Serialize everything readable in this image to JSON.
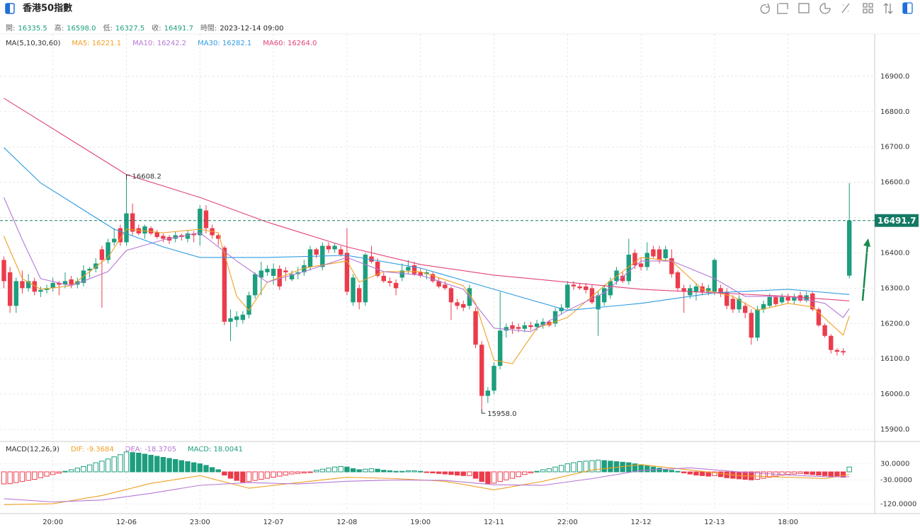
{
  "header": {
    "title": "香港50指數",
    "labels": [
      "開:",
      "高:",
      "低:",
      "收:",
      "時間:"
    ],
    "values": [
      "16335.5",
      "16598.0",
      "16327.5",
      "16491.7",
      "2023-12-14 09:00"
    ]
  },
  "chart_data": {
    "type": "candlestick",
    "up_color": "#1d9e7e",
    "down_color": "#eb3c4c",
    "xlim": [
      -0.636,
      142.14
    ],
    "xticks": [
      {
        "value": 8,
        "label": "20:00"
      },
      {
        "value": 20,
        "label": "12-06"
      },
      {
        "value": 32,
        "label": "23:00"
      },
      {
        "value": 44,
        "label": "12-07"
      },
      {
        "value": 56,
        "label": "12-08"
      },
      {
        "value": 68,
        "label": "19:00"
      },
      {
        "value": 80,
        "label": "12-11"
      },
      {
        "value": 92,
        "label": "22:00"
      },
      {
        "value": 104,
        "label": "12-12"
      },
      {
        "value": 116,
        "label": "12-13"
      },
      {
        "value": 128,
        "label": "18:00"
      }
    ],
    "ylim": [
      15870,
      17020
    ],
    "yticks": [
      {
        "value": 15900,
        "label": "15900.0"
      },
      {
        "value": 16000,
        "label": "16000.0"
      },
      {
        "value": 16100,
        "label": "16100.0"
      },
      {
        "value": 16200,
        "label": "16200.0"
      },
      {
        "value": 16300,
        "label": "16300.0"
      },
      {
        "value": 16400,
        "label": "16400.0"
      },
      {
        "value": 16500,
        "label": "16500.0"
      },
      {
        "value": 16600,
        "label": "16600.0"
      },
      {
        "value": 16700,
        "label": "16700.0"
      },
      {
        "value": 16800,
        "label": "16800.0"
      },
      {
        "value": 16900,
        "label": "16900.0"
      }
    ],
    "grid": true,
    "max_label": "16608.2",
    "min_label": "15958.0",
    "ohlc": [
      [
        16380,
        16390,
        16300,
        16320
      ],
      [
        16345,
        16360,
        16230,
        16250
      ],
      [
        16250,
        16330,
        16230,
        16320
      ],
      [
        16320,
        16350,
        16285,
        16300
      ],
      [
        16300,
        16340,
        16290,
        16320
      ],
      [
        16320,
        16330,
        16280,
        16290
      ],
      [
        16290,
        16305,
        16275,
        16295
      ],
      [
        16295,
        16310,
        16285,
        16300
      ],
      [
        16300,
        16330,
        16290,
        16315
      ],
      [
        16315,
        16320,
        16280,
        16310
      ],
      [
        16310,
        16345,
        16300,
        16320
      ],
      [
        16325,
        16335,
        16300,
        16310
      ],
      [
        16310,
        16330,
        16300,
        16320
      ],
      [
        16315,
        16365,
        16305,
        16350
      ],
      [
        16350,
        16360,
        16330,
        16355
      ],
      [
        16355,
        16385,
        16345,
        16370
      ],
      [
        16410,
        16420,
        16245,
        16380
      ],
      [
        16380,
        16440,
        16370,
        16430
      ],
      [
        16430,
        16470,
        16420,
        16440
      ],
      [
        16470,
        16480,
        16420,
        16430
      ],
      [
        16430,
        16608.2,
        16420,
        16512
      ],
      [
        16512,
        16540,
        16450,
        16460
      ],
      [
        16470,
        16480,
        16450,
        16455
      ],
      [
        16455,
        16480,
        16440,
        16475
      ],
      [
        16470,
        16475,
        16450,
        16455
      ],
      [
        16458,
        16465,
        16440,
        16445
      ],
      [
        16448,
        16455,
        16430,
        16440
      ],
      [
        16445,
        16450,
        16425,
        16435
      ],
      [
        16440,
        16460,
        16430,
        16450
      ],
      [
        16450,
        16455,
        16435,
        16445
      ],
      [
        16440,
        16465,
        16430,
        16455
      ],
      [
        16455,
        16462,
        16430,
        16450
      ],
      [
        16450,
        16535,
        16420,
        16525
      ],
      [
        16520,
        16535,
        16455,
        16470
      ],
      [
        16470,
        16480,
        16440,
        16450
      ],
      [
        16450,
        16455,
        16420,
        16440
      ],
      [
        16415,
        16420,
        16195,
        16205
      ],
      [
        16205,
        16240,
        16150,
        16215
      ],
      [
        16210,
        16235,
        16190,
        16220
      ],
      [
        16210,
        16235,
        16200,
        16225
      ],
      [
        16225,
        16290,
        16215,
        16280
      ],
      [
        16280,
        16345,
        16270,
        16340
      ],
      [
        16330,
        16375,
        16280,
        16350
      ],
      [
        16345,
        16365,
        16335,
        16355
      ],
      [
        16335,
        16370,
        16310,
        16355
      ],
      [
        16355,
        16365,
        16295,
        16305
      ],
      [
        16350,
        16360,
        16320,
        16345
      ],
      [
        16325,
        16350,
        16320,
        16340
      ],
      [
        16340,
        16360,
        16325,
        16345
      ],
      [
        16345,
        16380,
        16335,
        16365
      ],
      [
        16360,
        16420,
        16350,
        16410
      ],
      [
        16410,
        16415,
        16385,
        16395
      ],
      [
        16360,
        16430,
        16350,
        16420
      ],
      [
        16420,
        16430,
        16400,
        16410
      ],
      [
        16410,
        16428,
        16400,
        16420
      ],
      [
        16410,
        16420,
        16390,
        16395
      ],
      [
        16400,
        16470,
        16280,
        16290
      ],
      [
        16260,
        16340,
        16250,
        16330
      ],
      [
        16300,
        16310,
        16240,
        16260
      ],
      [
        16260,
        16400,
        16250,
        16395
      ],
      [
        16390,
        16420,
        16370,
        16375
      ],
      [
        16375,
        16385,
        16330,
        16335
      ],
      [
        16335,
        16345,
        16315,
        16320
      ],
      [
        16320,
        16330,
        16305,
        16315
      ],
      [
        16315,
        16325,
        16280,
        16300
      ],
      [
        16330,
        16370,
        16320,
        16350
      ],
      [
        16350,
        16380,
        16340,
        16360
      ],
      [
        16365,
        16375,
        16335,
        16340
      ],
      [
        16345,
        16355,
        16330,
        16335
      ],
      [
        16340,
        16350,
        16325,
        16345
      ],
      [
        16340,
        16345,
        16315,
        16320
      ],
      [
        16320,
        16330,
        16300,
        16305
      ],
      [
        16310,
        16320,
        16295,
        16300
      ],
      [
        16300,
        16305,
        16210,
        16260
      ],
      [
        16260,
        16270,
        16240,
        16250
      ],
      [
        16255,
        16265,
        16235,
        16245
      ],
      [
        16250,
        16310,
        16240,
        16300
      ],
      [
        16235,
        16245,
        16130,
        16140
      ],
      [
        16140,
        16150,
        15958,
        15995
      ],
      [
        15995,
        16020,
        15975,
        16010
      ],
      [
        16010,
        16090,
        16000,
        16080
      ],
      [
        16080,
        16290,
        16070,
        16180
      ],
      [
        16180,
        16200,
        16160,
        16190
      ],
      [
        16195,
        16205,
        16170,
        16185
      ],
      [
        16190,
        16200,
        16175,
        16185
      ],
      [
        16185,
        16205,
        16175,
        16195
      ],
      [
        16195,
        16205,
        16180,
        16190
      ],
      [
        16190,
        16210,
        16180,
        16200
      ],
      [
        16195,
        16215,
        16185,
        16205
      ],
      [
        16205,
        16210,
        16190,
        16195
      ],
      [
        16200,
        16245,
        16190,
        16235
      ],
      [
        16235,
        16255,
        16225,
        16245
      ],
      [
        16245,
        16320,
        16240,
        16310
      ],
      [
        16310,
        16320,
        16295,
        16305
      ],
      [
        16305,
        16315,
        16295,
        16300
      ],
      [
        16305,
        16315,
        16285,
        16295
      ],
      [
        16300,
        16310,
        16255,
        16260
      ],
      [
        16240,
        16290,
        16165,
        16280
      ],
      [
        16260,
        16310,
        16250,
        16300
      ],
      [
        16280,
        16330,
        16270,
        16320
      ],
      [
        16320,
        16360,
        16310,
        16350
      ],
      [
        16335,
        16345,
        16315,
        16320
      ],
      [
        16320,
        16440,
        16310,
        16395
      ],
      [
        16400,
        16410,
        16355,
        16365
      ],
      [
        16370,
        16385,
        16350,
        16360
      ],
      [
        16360,
        16430,
        16350,
        16400
      ],
      [
        16410,
        16420,
        16385,
        16390
      ],
      [
        16410,
        16420,
        16370,
        16380
      ],
      [
        16385,
        16420,
        16375,
        16410
      ],
      [
        16385,
        16410,
        16330,
        16340
      ],
      [
        16345,
        16350,
        16290,
        16300
      ],
      [
        16300,
        16310,
        16230,
        16290
      ],
      [
        16280,
        16310,
        16270,
        16300
      ],
      [
        16290,
        16315,
        16265,
        16305
      ],
      [
        16305,
        16315,
        16280,
        16290
      ],
      [
        16290,
        16310,
        16280,
        16300
      ],
      [
        16290,
        16385,
        16280,
        16380
      ],
      [
        16300,
        16310,
        16275,
        16285
      ],
      [
        16290,
        16300,
        16240,
        16250
      ],
      [
        16270,
        16280,
        16230,
        16240
      ],
      [
        16240,
        16280,
        16230,
        16270
      ],
      [
        16250,
        16260,
        16215,
        16230
      ],
      [
        16230,
        16240,
        16140,
        16160
      ],
      [
        16160,
        16250,
        16150,
        16240
      ],
      [
        16240,
        16265,
        16230,
        16255
      ],
      [
        16250,
        16285,
        16245,
        16275
      ],
      [
        16275,
        16280,
        16250,
        16255
      ],
      [
        16260,
        16285,
        16255,
        16275
      ],
      [
        16275,
        16285,
        16255,
        16265
      ],
      [
        16265,
        16285,
        16255,
        16275
      ],
      [
        16280,
        16290,
        16260,
        16265
      ],
      [
        16265,
        16290,
        16260,
        16280
      ],
      [
        16285,
        16290,
        16235,
        16240
      ],
      [
        16240,
        16245,
        16190,
        16195
      ],
      [
        16195,
        16200,
        16160,
        16165
      ],
      [
        16165,
        16170,
        16115,
        16125
      ],
      [
        16125,
        16130,
        16110,
        16120
      ],
      [
        16122,
        16130,
        16110,
        16118
      ],
      [
        16335.5,
        16598,
        16327.5,
        16491.7
      ]
    ],
    "ma_title": "MA(5,10,30,60)",
    "ma": [
      {
        "name": "MA5: 16221.1",
        "color": "#f0a023",
        "x": [
          0,
          3,
          6,
          11,
          17,
          20,
          26,
          32,
          35,
          38,
          40,
          43,
          49,
          56,
          58,
          62,
          68,
          75,
          77,
          80,
          83,
          87,
          92,
          98,
          104,
          109,
          114,
          119,
          123,
          128,
          132,
          137,
          138
        ],
        "values": [
          16447,
          16327,
          16297,
          16307,
          16387,
          16467,
          16457,
          16467,
          16457,
          16277,
          16237,
          16317,
          16357,
          16377,
          16317,
          16347,
          16347,
          16307,
          16257,
          16096,
          16086,
          16187,
          16217,
          16307,
          16387,
          16377,
          16297,
          16277,
          16237,
          16257,
          16247,
          16167,
          16221.1
        ]
      },
      {
        "name": "MA10: 16242.2",
        "color": "#b678d6",
        "x": [
          0,
          3,
          6,
          11,
          17,
          20,
          26,
          32,
          38,
          43,
          49,
          56,
          62,
          68,
          75,
          80,
          86,
          92,
          98,
          104,
          109,
          116,
          121,
          128,
          134,
          137,
          138
        ],
        "values": [
          16557,
          16437,
          16327,
          16307,
          16347,
          16407,
          16437,
          16457,
          16377,
          16317,
          16347,
          16387,
          16347,
          16337,
          16297,
          16187,
          16177,
          16237,
          16287,
          16377,
          16377,
          16327,
          16277,
          16277,
          16257,
          16217,
          16242.2
        ]
      },
      {
        "name": "MA30: 16282.1",
        "color": "#2e9be0",
        "x": [
          0,
          6,
          18,
          26,
          32,
          43,
          56,
          68,
          80,
          92,
          104,
          116,
          128,
          138
        ],
        "values": [
          16698,
          16598,
          16467,
          16417,
          16387,
          16387,
          16393,
          16357,
          16297,
          16237,
          16257,
          16287,
          16297,
          16282.1
        ]
      },
      {
        "name": "MA60: 16264.0",
        "color": "#e0427a",
        "x": [
          0,
          20,
          32,
          43,
          56,
          68,
          80,
          92,
          104,
          116,
          128,
          138
        ],
        "values": [
          16838,
          16622,
          16557,
          16487,
          16417,
          16367,
          16337,
          16317,
          16297,
          16287,
          16277,
          16264
        ]
      }
    ],
    "macd": {
      "title": "MACD(12,26,9)",
      "name": "MACD: ",
      "ylim": [
        -145,
        108
      ],
      "yticks": [
        {
          "value": 30,
          "label": "30.0000"
        },
        {
          "value": -30,
          "label": "-30.0000"
        },
        {
          "value": -120,
          "label": "-120.0000"
        }
      ],
      "histogram": [
        -45,
        -44,
        -40,
        -36,
        -32,
        -28,
        -22,
        -16,
        -10,
        -5,
        2,
        8,
        14,
        20,
        26,
        34,
        40,
        48,
        56,
        64,
        74,
        72,
        70,
        66,
        62,
        58,
        54,
        50,
        46,
        42,
        38,
        34,
        30,
        24,
        16,
        8,
        -12,
        -24,
        -32,
        -38,
        -36,
        -32,
        -28,
        -24,
        -20,
        -16,
        -12,
        -8,
        -6,
        -4,
        -2,
        6,
        10,
        14,
        18,
        20,
        18,
        12,
        8,
        10,
        12,
        10,
        6,
        4,
        2,
        2,
        4,
        4,
        2,
        -2,
        -4,
        -6,
        -8,
        -10,
        -12,
        -14,
        -14,
        -24,
        -36,
        -44,
        -42,
        -36,
        -30,
        -24,
        -18,
        -10,
        -4,
        2,
        8,
        12,
        18,
        24,
        30,
        34,
        38,
        40,
        42,
        44,
        42,
        40,
        38,
        36,
        34,
        30,
        26,
        22,
        18,
        14,
        10,
        6,
        2,
        -4,
        -8,
        -12,
        -14,
        -16,
        -14,
        -18,
        -22,
        -24,
        -26,
        -28,
        -30,
        -28,
        -24,
        -20,
        -16,
        -12,
        -10,
        -8,
        -6,
        -8,
        -10,
        -12,
        -14,
        -16,
        -18,
        -20,
        18.0041
      ],
      "lines": [
        {
          "name": "DIF: ",
          "color": "#f0a023",
          "x": [
            0,
            8,
            16,
            24,
            32,
            40,
            48,
            56,
            64,
            72,
            80,
            88,
            96,
            104,
            112,
            120,
            128,
            134,
            138
          ],
          "values": [
            -122,
            -119,
            -88,
            -43,
            -14,
            -61,
            -40,
            -20,
            -25,
            -35,
            -67,
            -35,
            7,
            27,
            7,
            -14,
            -20,
            -25,
            -9.3684
          ]
        },
        {
          "name": "DEA: ",
          "color": "#b678d6",
          "x": [
            0,
            8,
            16,
            24,
            32,
            40,
            48,
            56,
            64,
            72,
            80,
            88,
            96,
            104,
            112,
            120,
            128,
            134,
            138
          ],
          "values": [
            -100,
            -112,
            -105,
            -80,
            -50,
            -40,
            -45,
            -35,
            -30,
            -32,
            -48,
            -50,
            -25,
            5,
            15,
            0,
            -12,
            -18,
            -18.3705
          ]
        }
      ]
    }
  }
}
